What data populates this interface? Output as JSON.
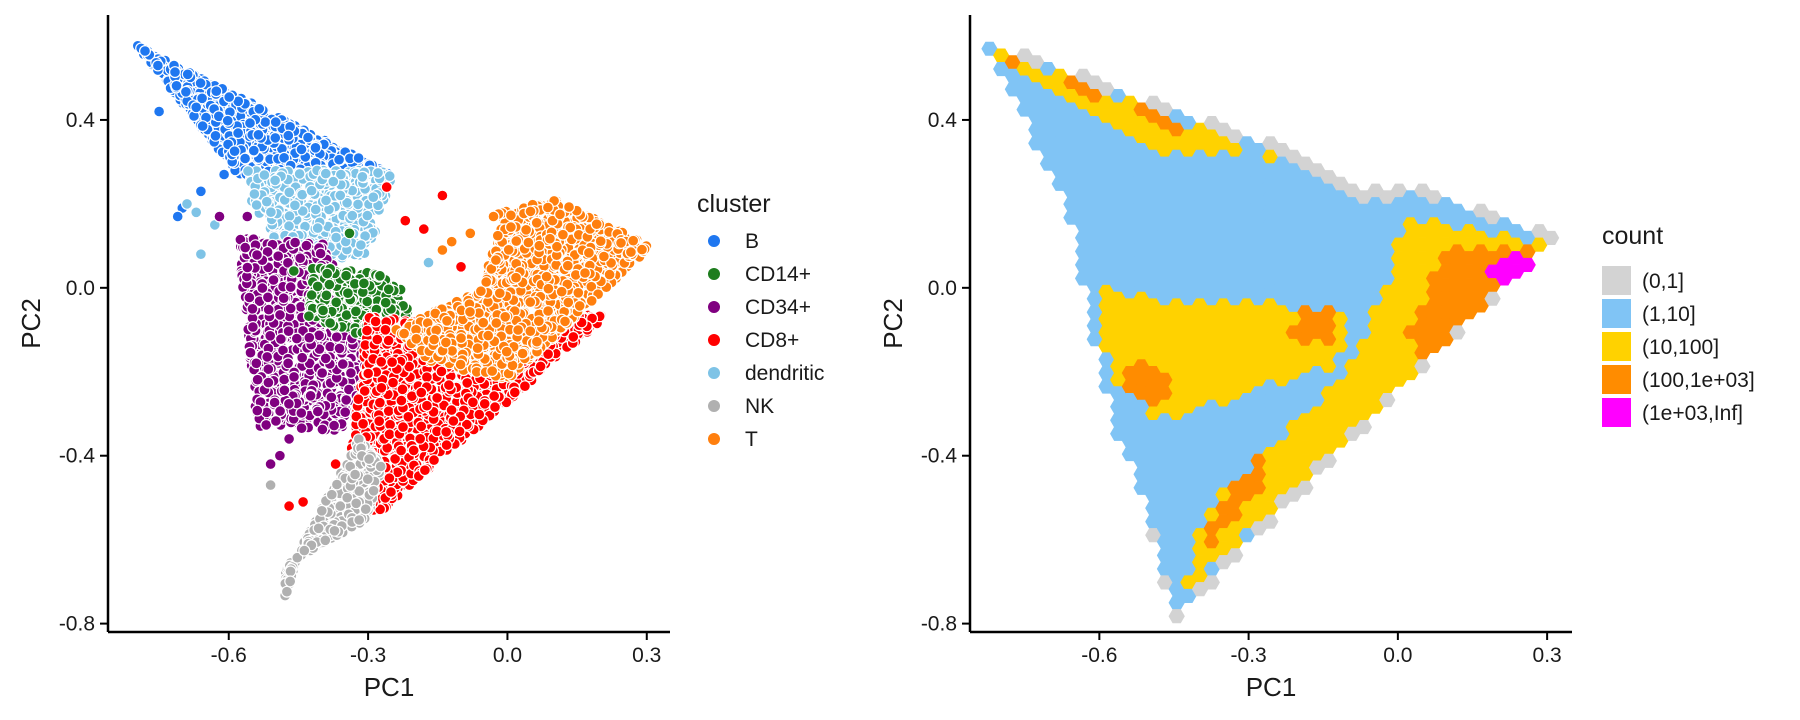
{
  "chart_data": [
    {
      "type": "scatter",
      "xlabel": "PC1",
      "ylabel": "PC2",
      "xlim": [
        -0.86,
        0.35
      ],
      "ylim": [
        -0.82,
        0.65
      ],
      "xticks": [
        -0.6,
        -0.3,
        0.0,
        0.3
      ],
      "yticks": [
        0.4,
        0.0,
        -0.4,
        -0.8
      ],
      "xtick_labels": [
        "-0.6",
        "-0.3",
        "0.0",
        "0.3"
      ],
      "ytick_labels": [
        "0.4",
        "0.0",
        "-0.4",
        "-0.8"
      ],
      "grid": false,
      "legend": {
        "title": "cluster",
        "position": "right",
        "entries": [
          {
            "label": "B",
            "color": "#1f77f0"
          },
          {
            "label": "CD14+",
            "color": "#1e7d1e"
          },
          {
            "label": "CD34+",
            "color": "#800080"
          },
          {
            "label": "CD8+",
            "color": "#ff0000"
          },
          {
            "label": "dendritic",
            "color": "#7ec3e6"
          },
          {
            "label": "NK",
            "color": "#b0b0b0"
          },
          {
            "label": "T",
            "color": "#ff7f0e"
          }
        ]
      },
      "series": [
        {
          "name": "B",
          "regions": [
            [
              [
                -0.8,
                0.58
              ],
              [
                -0.25,
                0.27
              ],
              [
                -0.58,
                0.27
              ]
            ]
          ],
          "outliers": [
            [
              -0.7,
              0.19
            ],
            [
              -0.71,
              0.17
            ],
            [
              -0.66,
              0.23
            ],
            [
              -0.61,
              0.27
            ],
            [
              -0.75,
              0.42
            ],
            [
              -0.67,
              0.43
            ]
          ]
        },
        {
          "name": "dendritic",
          "regions": [
            [
              [
                -0.56,
                0.28
              ],
              [
                -0.24,
                0.28
              ],
              [
                -0.3,
                0.08
              ],
              [
                -0.47,
                0.05
              ],
              [
                -0.55,
                0.2
              ]
            ]
          ],
          "outliers": [
            [
              -0.67,
              0.18
            ],
            [
              -0.69,
              0.2
            ],
            [
              -0.63,
              0.15
            ],
            [
              -0.66,
              0.08
            ],
            [
              -0.17,
              0.06
            ]
          ]
        },
        {
          "name": "CD34+",
          "regions": [
            [
              [
                -0.58,
                0.12
              ],
              [
                -0.4,
                0.11
              ],
              [
                -0.3,
                -0.05
              ],
              [
                -0.29,
                -0.25
              ],
              [
                -0.36,
                -0.34
              ],
              [
                -0.54,
                -0.33
              ]
            ]
          ],
          "outliers": [
            [
              -0.62,
              0.17
            ],
            [
              -0.56,
              0.17
            ],
            [
              -0.51,
              -0.42
            ],
            [
              -0.49,
              -0.4
            ],
            [
              -0.47,
              -0.36
            ]
          ]
        },
        {
          "name": "CD14+",
          "regions": [
            [
              [
                -0.42,
                0.05
              ],
              [
                -0.24,
                0.03
              ],
              [
                -0.21,
                -0.07
              ],
              [
                -0.31,
                -0.12
              ],
              [
                -0.43,
                -0.07
              ]
            ]
          ],
          "outliers": [
            [
              -0.34,
              0.13
            ],
            [
              -0.46,
              0.04
            ]
          ]
        },
        {
          "name": "CD8+",
          "regions": [
            [
              [
                -0.3,
                -0.07
              ],
              [
                -0.03,
                -0.09
              ],
              [
                0.22,
                -0.06
              ],
              [
                -0.29,
                -0.55
              ],
              [
                -0.34,
                -0.42
              ]
            ]
          ],
          "outliers": [
            [
              -0.26,
              0.24
            ],
            [
              -0.14,
              0.22
            ],
            [
              -0.22,
              0.16
            ],
            [
              -0.18,
              0.14
            ],
            [
              -0.1,
              0.05
            ],
            [
              -0.47,
              -0.52
            ],
            [
              -0.44,
              -0.51
            ],
            [
              -0.37,
              -0.42
            ]
          ]
        },
        {
          "name": "T",
          "regions": [
            [
              [
                -0.02,
                0.18
              ],
              [
                0.1,
                0.21
              ],
              [
                0.31,
                0.1
              ],
              [
                0.0,
                -0.22
              ],
              [
                -0.16,
                -0.18
              ],
              [
                -0.24,
                -0.1
              ],
              [
                -0.05,
                0.0
              ]
            ]
          ],
          "outliers": [
            [
              -0.03,
              0.17
            ],
            [
              -0.08,
              0.13
            ],
            [
              -0.12,
              0.11
            ],
            [
              -0.14,
              0.09
            ]
          ]
        },
        {
          "name": "NK",
          "regions": [
            [
              [
                -0.48,
                -0.66
              ],
              [
                -0.3,
                -0.55
              ],
              [
                -0.27,
                -0.42
              ],
              [
                -0.32,
                -0.36
              ],
              [
                -0.45,
                -0.63
              ],
              [
                -0.48,
                -0.75
              ]
            ]
          ],
          "outliers": [
            [
              -0.51,
              -0.47
            ]
          ]
        }
      ]
    },
    {
      "type": "heatmap",
      "subtype": "hexbin",
      "xlabel": "PC1",
      "ylabel": "PC2",
      "xlim": [
        -0.86,
        0.35
      ],
      "ylim": [
        -0.82,
        0.65
      ],
      "xticks": [
        -0.6,
        -0.3,
        0.0,
        0.3
      ],
      "yticks": [
        0.4,
        0.0,
        -0.4,
        -0.8
      ],
      "xtick_labels": [
        "-0.6",
        "-0.3",
        "0.0",
        "0.3"
      ],
      "ytick_labels": [
        "0.4",
        "0.0",
        "-0.4",
        "-0.8"
      ],
      "grid": false,
      "legend": {
        "title": "count",
        "position": "right",
        "bins": [
          {
            "label": "(0,1]",
            "color": "#d3d3d3"
          },
          {
            "label": "(1,10]",
            "color": "#80c4f5"
          },
          {
            "label": "(10,100]",
            "color": "#ffd200"
          },
          {
            "label": "(100,1e+03]",
            "color": "#ff8c00"
          },
          {
            "label": "(1e+03,Inf]",
            "color": "#ff00ff"
          }
        ]
      },
      "regions": [
        {
          "bin": "(0,1]",
          "polygon": [
            [
              -0.85,
              0.6
            ],
            [
              -0.2,
              0.32
            ],
            [
              -0.12,
              0.25
            ],
            [
              0.05,
              0.24
            ],
            [
              0.32,
              0.12
            ],
            [
              0.0,
              -0.25
            ],
            [
              -0.45,
              -0.8
            ],
            [
              -0.52,
              -0.48
            ],
            [
              -0.62,
              0.05
            ],
            [
              -0.75,
              0.45
            ]
          ]
        },
        {
          "bin": "(1,10]",
          "polygon": [
            [
              -0.83,
              0.58
            ],
            [
              -0.2,
              0.3
            ],
            [
              -0.1,
              0.21
            ],
            [
              0.05,
              0.22
            ],
            [
              0.3,
              0.12
            ],
            [
              0.0,
              -0.22
            ],
            [
              -0.45,
              -0.77
            ],
            [
              -0.5,
              -0.55
            ],
            [
              -0.56,
              -0.36
            ],
            [
              -0.63,
              -0.05
            ],
            [
              -0.64,
              0.12
            ],
            [
              -0.75,
              0.4
            ]
          ]
        },
        {
          "bin": "(10,100]",
          "polygon": [
            [
              -0.82,
              0.57
            ],
            [
              -0.25,
              0.31
            ],
            [
              -0.52,
              0.33
            ]
          ]
        },
        {
          "bin": "(10,100]",
          "polygon": [
            [
              -0.61,
              0.0
            ],
            [
              -0.43,
              -0.04
            ],
            [
              -0.24,
              -0.04
            ],
            [
              -0.1,
              -0.05
            ],
            [
              -0.12,
              -0.18
            ],
            [
              -0.35,
              -0.27
            ],
            [
              -0.48,
              -0.32
            ],
            [
              -0.58,
              -0.2
            ]
          ]
        },
        {
          "bin": "(10,100]",
          "polygon": [
            [
              0.02,
              0.17
            ],
            [
              0.3,
              0.1
            ],
            [
              0.02,
              -0.22
            ],
            [
              -0.44,
              -0.74
            ],
            [
              -0.38,
              -0.52
            ],
            [
              -0.1,
              -0.2
            ],
            [
              -0.02,
              0.02
            ]
          ]
        },
        {
          "bin": "(100,1e+03]",
          "polygon": [
            [
              -0.82,
              0.56
            ],
            [
              -0.47,
              0.41
            ],
            [
              -0.37,
              0.34
            ],
            [
              -0.62,
              0.46
            ]
          ]
        },
        {
          "bin": "(100,1e+03]",
          "polygon": [
            [
              -0.56,
              -0.2
            ],
            [
              -0.5,
              -0.18
            ],
            [
              -0.44,
              -0.25
            ],
            [
              -0.5,
              -0.3
            ]
          ]
        },
        {
          "bin": "(100,1e+03]",
          "polygon": [
            [
              -0.2,
              -0.05
            ],
            [
              -0.12,
              -0.06
            ],
            [
              -0.14,
              -0.13
            ],
            [
              -0.22,
              -0.12
            ]
          ]
        },
        {
          "bin": "(100,1e+03]",
          "polygon": [
            [
              0.1,
              0.1
            ],
            [
              0.28,
              0.1
            ],
            [
              0.06,
              -0.18
            ],
            [
              0.02,
              -0.1
            ]
          ]
        },
        {
          "bin": "(100,1e+03]",
          "polygon": [
            [
              -0.38,
              -0.62
            ],
            [
              -0.25,
              -0.45
            ],
            [
              -0.28,
              -0.4
            ],
            [
              -0.4,
              -0.58
            ]
          ]
        },
        {
          "bin": "(1e+03,Inf]",
          "polygon": [
            [
              0.17,
              0.06
            ],
            [
              0.24,
              0.09
            ],
            [
              0.27,
              0.06
            ],
            [
              0.2,
              0.01
            ]
          ]
        }
      ]
    }
  ]
}
